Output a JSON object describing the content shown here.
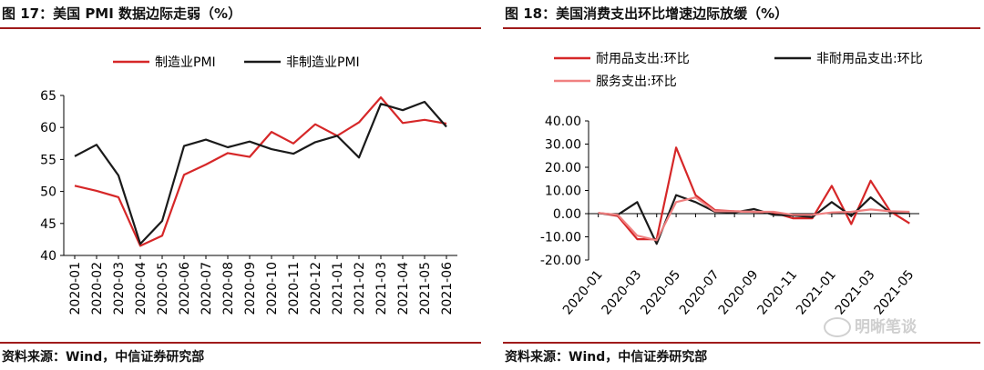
{
  "figures": [
    {
      "title": "图 17：美国 PMI 数据边际走弱（%）",
      "source": "资料来源：Wind，中信证券研究部",
      "chart_data": {
        "type": "line",
        "categories": [
          "2020-01",
          "2020-02",
          "2020-03",
          "2020-04",
          "2020-05",
          "2020-06",
          "2020-07",
          "2020-08",
          "2020-09",
          "2020-10",
          "2020-11",
          "2020-12",
          "2021-01",
          "2021-02",
          "2021-03",
          "2021-04",
          "2021-05",
          "2021-06"
        ],
        "series": [
          {
            "name": "制造业PMI",
            "color": "#d62728",
            "values": [
              50.9,
              50.1,
              49.1,
              41.5,
              43.1,
              52.6,
              54.2,
              56.0,
              55.4,
              59.3,
              57.5,
              60.5,
              58.7,
              60.8,
              64.7,
              60.7,
              61.2,
              60.6
            ]
          },
          {
            "name": "非制造业PMI",
            "color": "#1a1a1a",
            "values": [
              55.5,
              57.3,
              52.5,
              41.8,
              45.4,
              57.1,
              58.1,
              56.9,
              57.8,
              56.6,
              55.9,
              57.7,
              58.7,
              55.3,
              63.7,
              62.7,
              64.0,
              60.1
            ]
          }
        ],
        "yticks": [
          "40",
          "45",
          "50",
          "55",
          "60",
          "65"
        ],
        "ylim": [
          40,
          65
        ],
        "legend_position": "top",
        "grid": false
      }
    },
    {
      "title": "图 18：美国消费支出环比增速边际放缓（%）",
      "source": "资料来源：Wind，中信证券研究部",
      "chart_data": {
        "type": "line",
        "categories": [
          "2020-01",
          "2020-02",
          "2020-03",
          "2020-04",
          "2020-05",
          "2020-06",
          "2020-07",
          "2020-08",
          "2020-09",
          "2020-10",
          "2020-11",
          "2020-12",
          "2021-01",
          "2021-02",
          "2021-03",
          "2021-04",
          "2021-05"
        ],
        "xtick_labels": [
          "2020-01",
          "2020-03",
          "2020-05",
          "2020-07",
          "2020-09",
          "2020-11",
          "2021-01",
          "2021-03",
          "2021-05"
        ],
        "series": [
          {
            "name": "耐用品支出:环比",
            "color": "#d62728",
            "values": [
              0.3,
              -1.0,
              -11.0,
              -11.0,
              28.5,
              8.0,
              1.5,
              1.0,
              0.8,
              0.5,
              -2.0,
              -2.0,
              12.0,
              -4.5,
              14.2,
              1.0,
              -4.2
            ]
          },
          {
            "name": "非耐用品支出:环比",
            "color": "#1a1a1a",
            "values": [
              0.2,
              -0.5,
              5.0,
              -13.0,
              8.0,
              5.0,
              0.8,
              0.5,
              2.0,
              -0.5,
              -0.8,
              -1.5,
              5.0,
              -1.0,
              7.0,
              0.5,
              0.2
            ]
          },
          {
            "name": "服务支出:环比",
            "color": "#f08080",
            "values": [
              0.3,
              -0.5,
              -9.5,
              -11.5,
              5.0,
              7.0,
              1.0,
              1.0,
              0.8,
              0.8,
              -0.5,
              -0.5,
              0.5,
              0.8,
              1.8,
              1.0,
              0.8
            ]
          }
        ],
        "yticks": [
          "-20.00",
          "-10.00",
          "0.00",
          "10.00",
          "20.00",
          "30.00",
          "40.00"
        ],
        "ylim": [
          -20,
          40
        ],
        "legend_position": "top",
        "grid": false
      }
    }
  ],
  "watermark": "明晰笔谈"
}
